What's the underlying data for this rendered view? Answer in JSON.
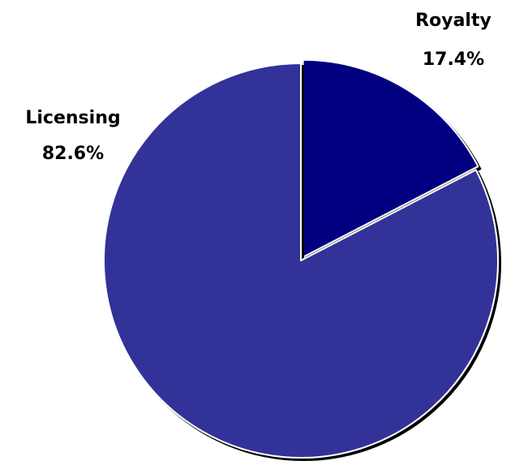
{
  "chart_data": {
    "type": "pie",
    "slices": [
      {
        "label": "Royalty",
        "value": 17.4,
        "value_label": "17.4%",
        "color": "#000080",
        "exploded": true
      },
      {
        "label": "Licensing",
        "value": 82.6,
        "value_label": "82.6%",
        "color": "#333399",
        "exploded": false
      }
    ],
    "start_angle_deg": 0,
    "direction": "clockwise",
    "shadow": true,
    "legend": "none"
  }
}
